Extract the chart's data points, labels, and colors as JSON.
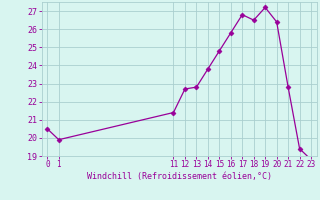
{
  "xlabel": "Windchill (Refroidissement éolien,°C)",
  "x": [
    0,
    1,
    11,
    12,
    13,
    14,
    15,
    16,
    17,
    18,
    19,
    20,
    21,
    22,
    23
  ],
  "y": [
    20.5,
    19.9,
    21.4,
    22.7,
    22.8,
    23.8,
    24.8,
    25.8,
    26.8,
    26.5,
    27.2,
    26.4,
    22.8,
    19.4,
    18.8
  ],
  "line_color": "#990099",
  "marker_color": "#990099",
  "bg_color": "#d8f5f0",
  "grid_color": "#aacfcf",
  "axis_color": "#990099",
  "tick_color": "#990099",
  "ylim": [
    19,
    27.5
  ],
  "yticks": [
    19,
    20,
    21,
    22,
    23,
    24,
    25,
    26,
    27
  ],
  "xlim": [
    -0.5,
    23.5
  ],
  "xticks": [
    0,
    1,
    11,
    12,
    13,
    14,
    15,
    16,
    17,
    18,
    19,
    20,
    21,
    22,
    23
  ]
}
